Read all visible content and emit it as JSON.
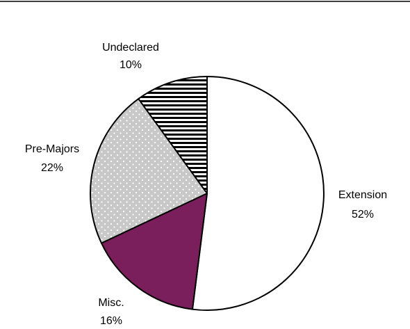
{
  "chart_data": {
    "type": "pie",
    "title": "",
    "start_angle_deg": 0,
    "direction": "clockwise",
    "legend": "none",
    "slices": [
      {
        "label": "Extension",
        "value": 52,
        "value_label": "52%",
        "fill": "#ffffff",
        "pattern": "none"
      },
      {
        "label": "Misc.",
        "value": 16,
        "value_label": "16%",
        "fill": "#7a1f5c",
        "pattern": "none"
      },
      {
        "label": "Pre-Majors",
        "value": 22,
        "value_label": "22%",
        "fill": "#c8c8c8",
        "pattern": "dots"
      },
      {
        "label": "Undeclared",
        "value": 10,
        "value_label": "10%",
        "fill": "#ffffff",
        "pattern": "horizontal-stripes"
      }
    ]
  }
}
